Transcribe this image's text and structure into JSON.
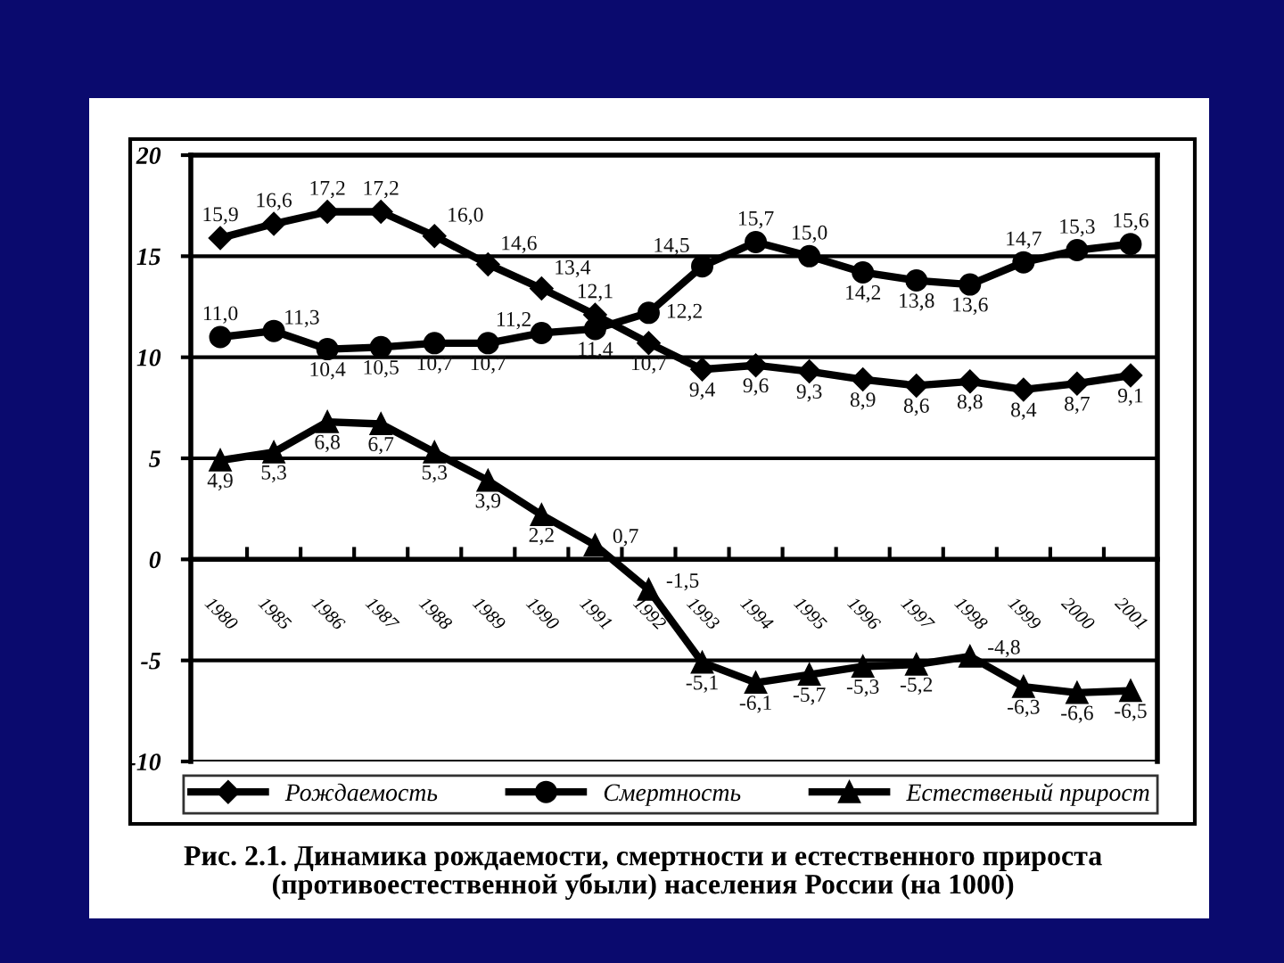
{
  "chart_data": {
    "type": "line",
    "title": "Рис. 2.1. Динамика рождаемости, смертности и естественного прироста (противоестественной убыли) населения России (на 1000)",
    "categories": [
      "1980",
      "1985",
      "1986",
      "1987",
      "1988",
      "1989",
      "1990",
      "1991",
      "1992",
      "1993",
      "1994",
      "1995",
      "1996",
      "1997",
      "1998",
      "1999",
      "2000",
      "2001"
    ],
    "series": [
      {
        "name": "Рождаемость",
        "color": "#000000",
        "marker": "diamond",
        "values": [
          15.9,
          16.6,
          17.2,
          17.2,
          16.0,
          14.6,
          13.4,
          12.1,
          10.7,
          9.4,
          9.6,
          9.3,
          8.9,
          8.6,
          8.8,
          8.4,
          8.7,
          9.1
        ],
        "value_labels": [
          "15,9",
          "16,6",
          "17,2",
          "17,2",
          "16,0",
          "14,6",
          "13,4",
          "12,1",
          "10,7",
          "9,4",
          "9,6",
          "9,3",
          "8,9",
          "8,6",
          "8,8",
          "8,4",
          "8,7",
          "9,1"
        ]
      },
      {
        "name": "Смертность",
        "color": "#000000",
        "marker": "circle",
        "values": [
          11.0,
          11.3,
          10.4,
          10.5,
          10.7,
          10.7,
          11.2,
          11.4,
          12.2,
          14.5,
          15.7,
          15.0,
          14.2,
          13.8,
          13.6,
          14.7,
          15.3,
          15.6
        ],
        "value_labels": [
          "11,0",
          "11,3",
          "10,4",
          "10,5",
          "10,7",
          "10,7",
          "11,2",
          "11,4",
          "12,2",
          "14,5",
          "15,7",
          "15,0",
          "14,2",
          "13,8",
          "13,6",
          "14,7",
          "15,3",
          "15,6"
        ]
      },
      {
        "name": "Естественый прирост",
        "color": "#000000",
        "marker": "triangle",
        "values": [
          4.9,
          5.3,
          6.8,
          6.7,
          5.3,
          3.9,
          2.2,
          0.7,
          -1.5,
          -5.1,
          -6.1,
          -5.7,
          -5.3,
          -5.2,
          -4.8,
          -6.3,
          -6.6,
          -6.5
        ],
        "value_labels": [
          "4,9",
          "5,3",
          "6,8",
          "6,7",
          "5,3",
          "3,9",
          "2,2",
          "0,7",
          "-1,5",
          "-5,1",
          "-6,1",
          "-5,7",
          "-5,3",
          "-5,2",
          "-4,8",
          "-6,3",
          "-6,6",
          "-6,5"
        ]
      }
    ],
    "ylim": [
      -10,
      20
    ],
    "yticks": [
      -10,
      -5,
      0,
      5,
      10,
      15,
      20
    ],
    "grid": "y",
    "legend": "bottom"
  }
}
